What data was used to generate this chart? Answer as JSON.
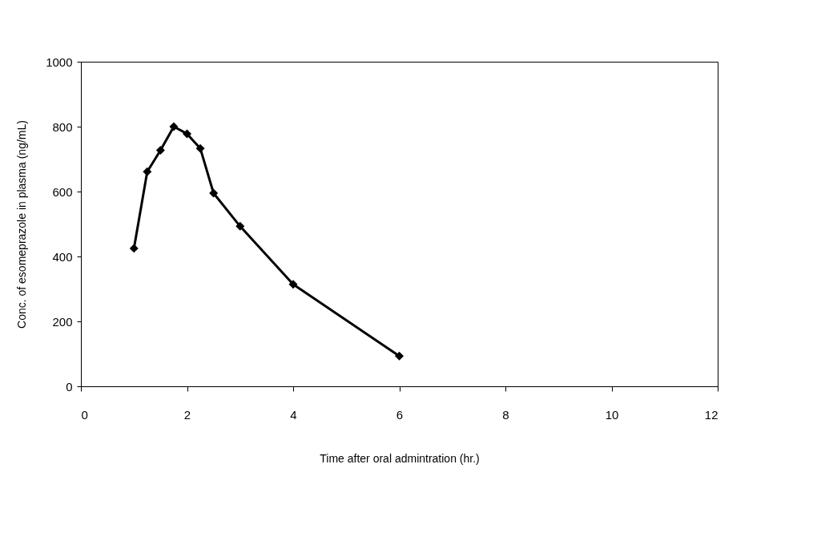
{
  "chart_data": {
    "type": "line",
    "xlabel": "Time after oral admintration (hr.)",
    "ylabel": "Conc. of esomeprazole in plasma (ng/mL)",
    "x": [
      1,
      1.25,
      1.5,
      1.75,
      2,
      2.25,
      2.5,
      3,
      4,
      6
    ],
    "series": [
      {
        "color": "#000000",
        "values": [
          425,
          661,
          727,
          800,
          778,
          733,
          595,
          493,
          314,
          93
        ]
      }
    ],
    "xlim": [
      0,
      12
    ],
    "xticks": [
      0,
      2,
      4,
      6,
      8,
      10,
      12
    ],
    "ylim": [
      0,
      1000
    ],
    "yticks": [
      0,
      200,
      400,
      600,
      800,
      1000
    ],
    "grid": false,
    "marker": "diamond",
    "line_style": "solid"
  }
}
